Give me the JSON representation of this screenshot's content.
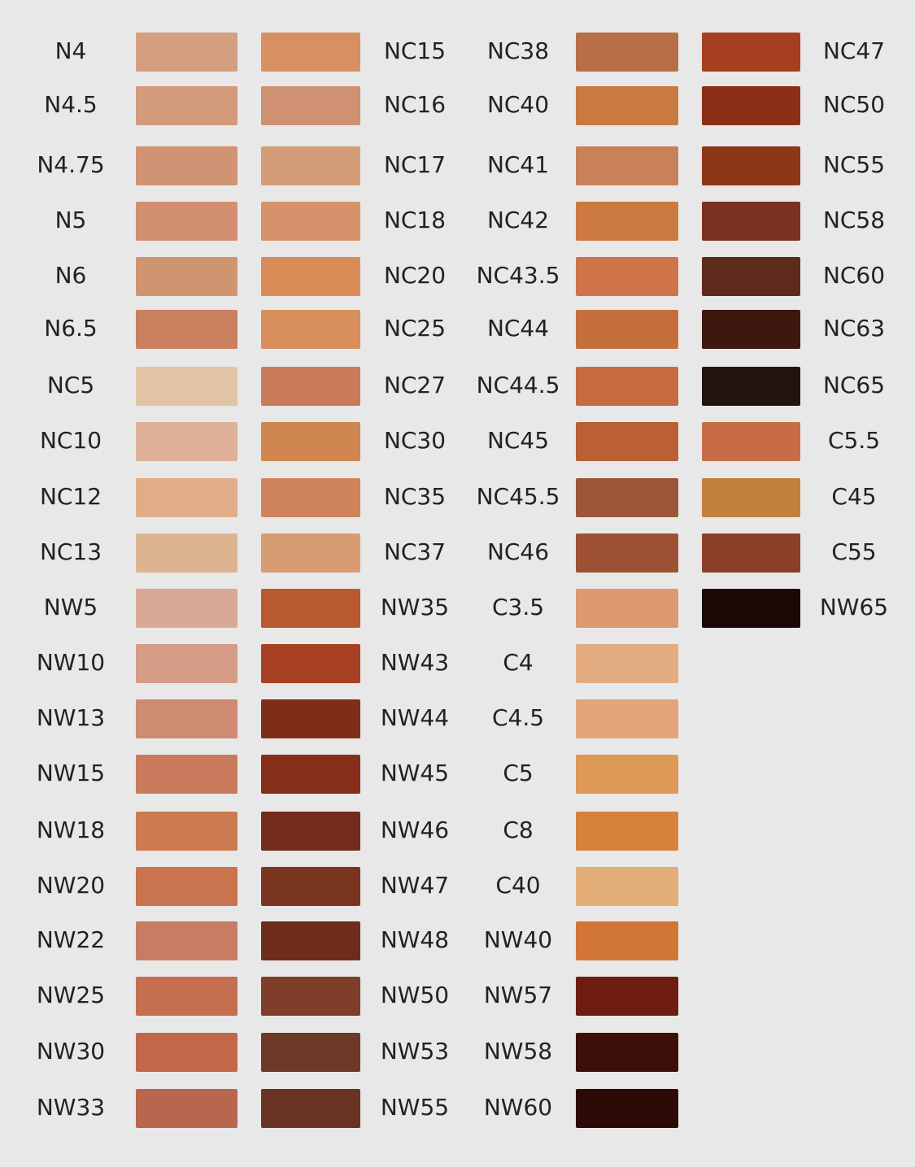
{
  "columns": [
    {
      "shades": [
        {
          "label": "N4",
          "color": "#d49e80"
        },
        {
          "label": "N4.5",
          "color": "#d39a7c"
        },
        {
          "label": "N4.75",
          "color": "#d09374"
        },
        {
          "label": "N5",
          "color": "#d18f70"
        },
        {
          "label": "N6",
          "color": "#cf9570"
        },
        {
          "label": "N6.5",
          "color": "#c8805e"
        },
        {
          "label": "NC5",
          "color": "#e2c4a4"
        },
        {
          "label": "NC10",
          "color": "#ddb097"
        },
        {
          "label": "NC12",
          "color": "#e0ad88"
        },
        {
          "label": "NC13",
          "color": "#dcb590"
        },
        {
          "label": "NW5",
          "color": "#d9a996"
        },
        {
          "label": "NW10",
          "color": "#d59c86"
        },
        {
          "label": "NW13",
          "color": "#cf8b72"
        },
        {
          "label": "NW15",
          "color": "#c97a5c"
        },
        {
          "label": "NW18",
          "color": "#cc7a52"
        },
        {
          "label": "NW20",
          "color": "#c9734f"
        },
        {
          "label": "NW22",
          "color": "#c77d64"
        },
        {
          "label": "NW25",
          "color": "#c66f50"
        },
        {
          "label": "NW30",
          "color": "#c2684a"
        },
        {
          "label": "NW33",
          "color": "#b8674e"
        }
      ]
    },
    {
      "shades": [
        {
          "label": "NC15",
          "color": "#d89062"
        },
        {
          "label": "NC16",
          "color": "#cf9172"
        },
        {
          "label": "NC17",
          "color": "#d59c7a"
        },
        {
          "label": "NC18",
          "color": "#d6926a"
        },
        {
          "label": "NC20",
          "color": "#da8c58"
        },
        {
          "label": "NC25",
          "color": "#d98f5c"
        },
        {
          "label": "NC27",
          "color": "#c97b5a"
        },
        {
          "label": "NC30",
          "color": "#cf8650"
        },
        {
          "label": "NC35",
          "color": "#d0845c"
        },
        {
          "label": "NC37",
          "color": "#d79c72"
        },
        {
          "label": "NW35",
          "color": "#b8592f"
        },
        {
          "label": "NW43",
          "color": "#a84024"
        },
        {
          "label": "NW44",
          "color": "#7e2e18"
        },
        {
          "label": "NW45",
          "color": "#852f1b"
        },
        {
          "label": "NW46",
          "color": "#732c1c"
        },
        {
          "label": "NW47",
          "color": "#7a3520"
        },
        {
          "label": "NW48",
          "color": "#6e2c1c"
        },
        {
          "label": "NW50",
          "color": "#7e3e2a"
        },
        {
          "label": "NW53",
          "color": "#6c3828"
        },
        {
          "label": "NW55",
          "color": "#6a3424"
        }
      ]
    },
    {
      "shades": [
        {
          "label": "NC38",
          "color": "#b86f48"
        },
        {
          "label": "NC40",
          "color": "#c97a40"
        },
        {
          "label": "NC41",
          "color": "#c98258"
        },
        {
          "label": "NC42",
          "color": "#cd7a40"
        },
        {
          "label": "NC43.5",
          "color": "#cf7448"
        },
        {
          "label": "NC44",
          "color": "#c5703c"
        },
        {
          "label": "NC44.5",
          "color": "#c86b40"
        },
        {
          "label": "NC45",
          "color": "#bb6034"
        },
        {
          "label": "NC45.5",
          "color": "#9e5638"
        },
        {
          "label": "NC46",
          "color": "#9e5034"
        },
        {
          "label": "C3.5",
          "color": "#dd9a70"
        },
        {
          "label": "C4",
          "color": "#e3ab80"
        },
        {
          "label": "C4.5",
          "color": "#e3a47a"
        },
        {
          "label": "C5",
          "color": "#de9858"
        },
        {
          "label": "C8",
          "color": "#d6823c"
        },
        {
          "label": "C40",
          "color": "#e2ad76"
        },
        {
          "label": "NW40",
          "color": "#d27638"
        },
        {
          "label": "NW57",
          "color": "#6e1c10"
        },
        {
          "label": "NW58",
          "color": "#3c0f08"
        },
        {
          "label": "NW60",
          "color": "#2e0a06"
        }
      ]
    },
    {
      "shades": [
        {
          "label": "NC47",
          "color": "#a63e20"
        },
        {
          "label": "NC50",
          "color": "#8a3018"
        },
        {
          "label": "NC55",
          "color": "#8e3618"
        },
        {
          "label": "NC58",
          "color": "#7a3220"
        },
        {
          "label": "NC60",
          "color": "#5e2a1c"
        },
        {
          "label": "NC63",
          "color": "#3e1810"
        },
        {
          "label": "NC65",
          "color": "#241410"
        },
        {
          "label": "C5.5",
          "color": "#c86c48"
        },
        {
          "label": "C45",
          "color": "#c0803e"
        },
        {
          "label": "C55",
          "color": "#8a4028"
        },
        {
          "label": "NW65",
          "color": "#1c0806"
        }
      ]
    }
  ]
}
